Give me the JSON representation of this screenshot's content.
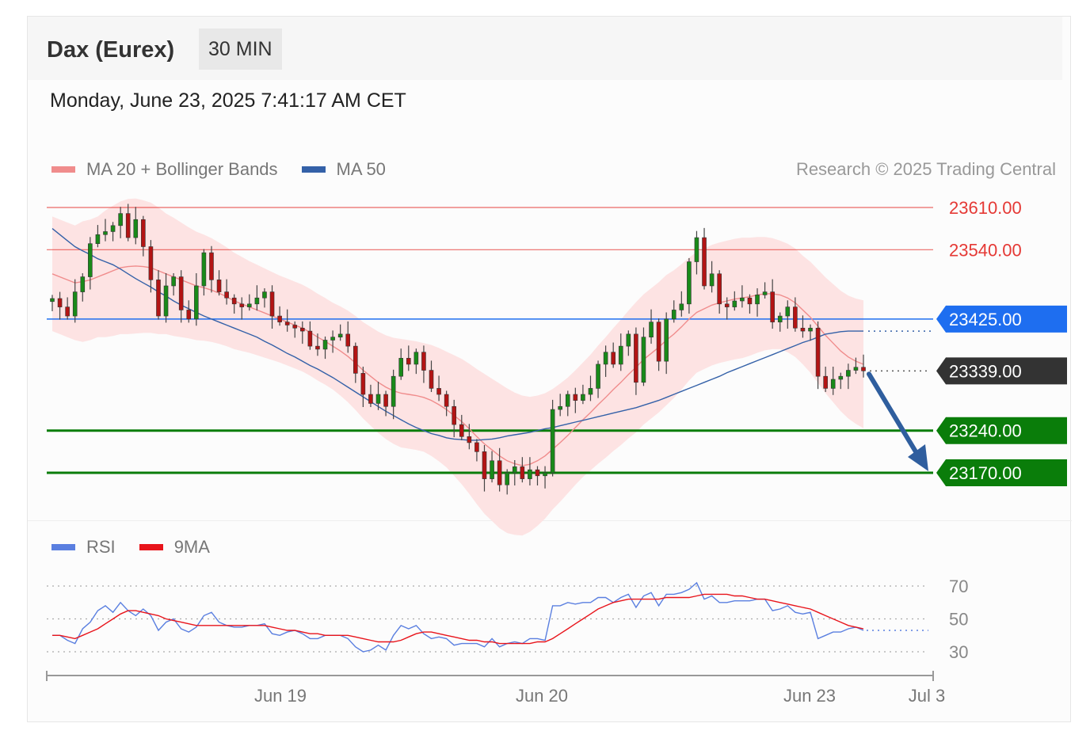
{
  "header": {
    "title": "Dax (Eurex)",
    "timeframe": "30 MIN",
    "datetime": "Monday, June 23, 2025 7:41:17 AM CET"
  },
  "legend": {
    "main": [
      {
        "label": "MA 20 + Bollinger Bands",
        "color": "#f08c8c"
      },
      {
        "label": "MA 50",
        "color": "#3461a8"
      }
    ],
    "rsi": [
      {
        "label": "RSI",
        "color": "#5a7fe0"
      },
      {
        "label": "9MA",
        "color": "#e8141b"
      }
    ]
  },
  "credit": "Research © 2025 Trading Central",
  "chart_data": [
    {
      "type": "candlestick",
      "ylim": [
        23080,
        23640
      ],
      "levels": [
        {
          "value": 23610,
          "label": "23610.00",
          "kind": "resistance",
          "color": "#e53935"
        },
        {
          "value": 23540,
          "label": "23540.00",
          "kind": "resistance",
          "color": "#e53935"
        },
        {
          "value": 23425,
          "label": "23425.00",
          "kind": "pivot",
          "color": "#1e6ef0"
        },
        {
          "value": 23339,
          "label": "23339.00",
          "kind": "last",
          "color": "#333333"
        },
        {
          "value": 23240,
          "label": "23240.00",
          "kind": "support",
          "color": "#0a7d0a"
        },
        {
          "value": 23170,
          "label": "23170.00",
          "kind": "support",
          "color": "#0a7d0a"
        }
      ],
      "arrow": {
        "from": 23339,
        "to": 23170,
        "direction": "down",
        "color": "#2f5e9e"
      },
      "x_ticks": [
        "Jun 19",
        "Jun 20",
        "Jun 23",
        "Jul 3"
      ],
      "closes": [
        23459,
        23445,
        23430,
        23470,
        23495,
        23550,
        23565,
        23570,
        23580,
        23600,
        23560,
        23590,
        23545,
        23490,
        23430,
        23480,
        23495,
        23440,
        23425,
        23480,
        23535,
        23490,
        23470,
        23460,
        23450,
        23445,
        23450,
        23460,
        23470,
        23430,
        23420,
        23415,
        23410,
        23405,
        23380,
        23375,
        23390,
        23395,
        23400,
        23380,
        23335,
        23300,
        23285,
        23300,
        23280,
        23330,
        23360,
        23350,
        23370,
        23340,
        23310,
        23300,
        23280,
        23250,
        23230,
        23220,
        23205,
        23160,
        23190,
        23150,
        23170,
        23180,
        23160,
        23175,
        23165,
        23170,
        23275,
        23280,
        23300,
        23290,
        23300,
        23310,
        23350,
        23370,
        23350,
        23380,
        23400,
        23320,
        23395,
        23420,
        23355,
        23425,
        23440,
        23450,
        23520,
        23560,
        23480,
        23500,
        23450,
        23445,
        23455,
        23460,
        23450,
        23465,
        23470,
        23420,
        23430,
        23445,
        23410,
        23405,
        23410,
        23330,
        23310,
        23325,
        23330,
        23340,
        23345,
        23339
      ],
      "ma20": [
        23500,
        23495,
        23490,
        23485,
        23487,
        23490,
        23495,
        23500,
        23505,
        23510,
        23512,
        23513,
        23512,
        23510,
        23505,
        23500,
        23495,
        23490,
        23485,
        23480,
        23477,
        23473,
        23468,
        23462,
        23455,
        23450,
        23445,
        23440,
        23435,
        23430,
        23425,
        23420,
        23415,
        23410,
        23403,
        23395,
        23388,
        23380,
        23372,
        23363,
        23352,
        23340,
        23330,
        23320,
        23312,
        23306,
        23302,
        23300,
        23298,
        23295,
        23290,
        23283,
        23275,
        23265,
        23255,
        23243,
        23230,
        23218,
        23208,
        23198,
        23190,
        23185,
        23182,
        23184,
        23190,
        23198,
        23209,
        23220,
        23232,
        23245,
        23258,
        23270,
        23283,
        23295,
        23308,
        23320,
        23333,
        23345,
        23358,
        23368,
        23378,
        23390,
        23400,
        23412,
        23425,
        23436,
        23442,
        23448,
        23452,
        23455,
        23458,
        23460,
        23462,
        23465,
        23467,
        23467,
        23465,
        23460,
        23452,
        23440,
        23428,
        23413,
        23398,
        23385,
        23372,
        23362,
        23355,
        23350
      ],
      "ma50": [
        23575,
        23565,
        23555,
        23545,
        23538,
        23532,
        23525,
        23520,
        23515,
        23508,
        23500,
        23492,
        23485,
        23478,
        23470,
        23463,
        23455,
        23448,
        23442,
        23436,
        23430,
        23425,
        23420,
        23415,
        23410,
        23405,
        23400,
        23395,
        23388,
        23382,
        23375,
        23368,
        23362,
        23355,
        23348,
        23342,
        23335,
        23328,
        23320,
        23312,
        23304,
        23296,
        23288,
        23280,
        23272,
        23265,
        23258,
        23251,
        23245,
        23240,
        23235,
        23232,
        23228,
        23226,
        23225,
        23224,
        23224,
        23225,
        23226,
        23228,
        23231,
        23233,
        23235,
        23237,
        23240,
        23243,
        23245,
        23248,
        23251,
        23254,
        23257,
        23260,
        23263,
        23266,
        23269,
        23272,
        23275,
        23278,
        23282,
        23286,
        23290,
        23295,
        23300,
        23305,
        23310,
        23315,
        23320,
        23325,
        23330,
        23336,
        23341,
        23346,
        23351,
        23356,
        23361,
        23366,
        23371,
        23376,
        23381,
        23386,
        23390,
        23395,
        23400,
        23402,
        23404,
        23405,
        23405,
        23405
      ],
      "bb_width": [
        95,
        95,
        95,
        95,
        100,
        100,
        100,
        105,
        108,
        110,
        112,
        112,
        110,
        108,
        105,
        100,
        98,
        95,
        92,
        90,
        88,
        86,
        84,
        82,
        80,
        78,
        76,
        75,
        74,
        73,
        72,
        72,
        72,
        72,
        72,
        72,
        72,
        72,
        74,
        76,
        78,
        80,
        82,
        84,
        86,
        88,
        90,
        90,
        90,
        90,
        92,
        94,
        96,
        100,
        104,
        108,
        112,
        116,
        118,
        120,
        120,
        118,
        116,
        112,
        108,
        104,
        100,
        98,
        96,
        95,
        95,
        96,
        98,
        100,
        102,
        104,
        106,
        108,
        108,
        108,
        108,
        108,
        106,
        104,
        102,
        100,
        100,
        100,
        100,
        100,
        100,
        100,
        98,
        96,
        94,
        92,
        90,
        90,
        90,
        90,
        92,
        94,
        96,
        98,
        100,
        102,
        104,
        106
      ]
    },
    {
      "type": "line",
      "ylim": [
        20,
        80
      ],
      "y_ticks": [
        70,
        50,
        30
      ],
      "rsi": [
        40,
        40,
        37,
        35,
        44,
        48,
        55,
        58,
        54,
        60,
        55,
        52,
        56,
        52,
        43,
        48,
        50,
        44,
        42,
        45,
        52,
        54,
        48,
        46,
        45,
        45,
        46,
        46,
        47,
        41,
        40,
        42,
        43,
        41,
        38,
        38,
        40,
        40,
        40,
        38,
        33,
        30,
        31,
        34,
        31,
        40,
        46,
        44,
        46,
        41,
        38,
        39,
        38,
        34,
        35,
        35,
        35,
        33,
        38,
        33,
        35,
        36,
        35,
        38,
        38,
        37,
        58,
        58,
        60,
        59,
        60,
        60,
        63,
        63,
        60,
        63,
        65,
        57,
        64,
        66,
        58,
        65,
        65,
        66,
        68,
        72,
        62,
        64,
        60,
        60,
        61,
        61,
        61,
        62,
        62,
        55,
        56,
        58,
        54,
        53,
        54,
        38,
        40,
        42,
        42,
        44,
        45,
        43
      ],
      "ma9": [
        40,
        40,
        39,
        38,
        40,
        42,
        44,
        47,
        50,
        53,
        55,
        55,
        54,
        53,
        52,
        50,
        49,
        48,
        47,
        46,
        46,
        46,
        46,
        46,
        46,
        46,
        46,
        46,
        46,
        45,
        44,
        43,
        43,
        42,
        41,
        41,
        40,
        40,
        40,
        40,
        39,
        38,
        37,
        36,
        36,
        36,
        37,
        39,
        41,
        42,
        42,
        41,
        40,
        39,
        38,
        37,
        37,
        36,
        36,
        35,
        35,
        35,
        35,
        35,
        36,
        36,
        38,
        41,
        44,
        47,
        50,
        53,
        56,
        58,
        60,
        61,
        62,
        62,
        62,
        62,
        62,
        63,
        63,
        63,
        63,
        64,
        65,
        65,
        65,
        65,
        64,
        64,
        63,
        62,
        62,
        61,
        60,
        59,
        58,
        57,
        56,
        54,
        52,
        50,
        48,
        46,
        45,
        44
      ]
    }
  ]
}
